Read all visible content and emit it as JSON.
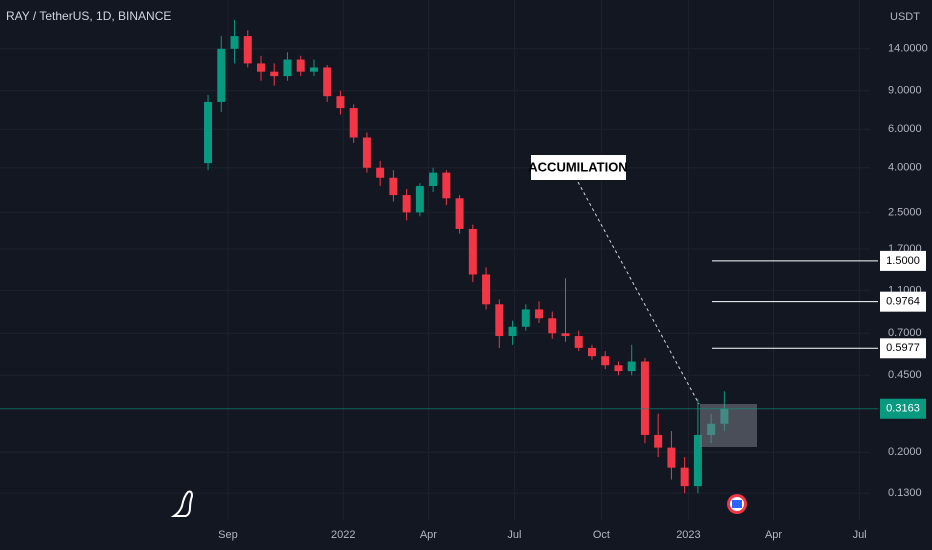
{
  "chart_data": {
    "type": "candlestick",
    "title": "RAY / TetherUS, 1D, BINANCE",
    "y_unit": "USDT",
    "x": [
      -21,
      -7,
      7,
      21,
      35,
      49,
      63,
      77,
      91,
      105,
      119,
      133,
      147,
      161,
      175,
      189,
      203,
      217,
      231,
      245,
      259,
      273,
      287,
      301,
      315,
      329,
      343,
      357,
      371,
      385,
      399,
      413,
      427,
      441,
      455,
      469,
      483,
      497,
      511,
      525
    ],
    "open": [
      4.2,
      8,
      14,
      16,
      12,
      11,
      10.5,
      12.5,
      11,
      11.5,
      8.5,
      7.5,
      5.5,
      4,
      3.6,
      3,
      2.5,
      3.3,
      3.8,
      2.9,
      2.1,
      1.3,
      0.95,
      0.68,
      0.75,
      0.9,
      0.82,
      0.7,
      0.68,
      0.6,
      0.55,
      0.5,
      0.47,
      0.52,
      0.24,
      0.21,
      0.17,
      0.14,
      0.24,
      0.27
    ],
    "high": [
      8.6,
      16,
      19,
      17,
      13,
      12,
      13.5,
      13,
      12.5,
      11.8,
      9,
      7.8,
      5.8,
      4.3,
      3.9,
      3.2,
      3.4,
      4,
      3.9,
      3,
      2.2,
      1.4,
      1,
      0.8,
      0.95,
      0.98,
      0.88,
      1.25,
      0.72,
      0.62,
      0.58,
      0.52,
      0.62,
      0.54,
      0.3,
      0.25,
      0.19,
      0.35,
      0.3,
      0.38
    ],
    "low": [
      3.9,
      7.2,
      12,
      11.5,
      10,
      9.5,
      10,
      10.5,
      10.5,
      8,
      7,
      5.2,
      3.8,
      3.3,
      2.8,
      2.3,
      2.4,
      3.1,
      2.7,
      2,
      1.2,
      0.9,
      0.6,
      0.62,
      0.72,
      0.78,
      0.66,
      0.64,
      0.58,
      0.53,
      0.48,
      0.45,
      0.45,
      0.22,
      0.19,
      0.15,
      0.13,
      0.13,
      0.22,
      0.25
    ],
    "close": [
      8,
      14,
      16,
      12,
      11,
      10.5,
      12.5,
      11,
      11.5,
      8.5,
      7.5,
      5.5,
      4,
      3.6,
      3,
      2.5,
      3.3,
      3.8,
      2.9,
      2.1,
      1.3,
      0.95,
      0.68,
      0.75,
      0.9,
      0.82,
      0.7,
      0.68,
      0.6,
      0.55,
      0.5,
      0.47,
      0.52,
      0.24,
      0.21,
      0.17,
      0.14,
      0.24,
      0.27,
      0.3163
    ],
    "up_color": "#089981",
    "down_color": "#f23645",
    "xlim": [
      -241,
      679
    ],
    "xticks": [
      {
        "value": 0,
        "label": "Sep"
      },
      {
        "value": 122,
        "label": "2022"
      },
      {
        "value": 212,
        "label": "Apr"
      },
      {
        "value": 303,
        "label": "Jul"
      },
      {
        "value": 395,
        "label": "Oct"
      },
      {
        "value": 487,
        "label": "2023"
      },
      {
        "value": 577,
        "label": "Apr"
      },
      {
        "value": 668,
        "label": "Jul"
      }
    ],
    "ylim": [
      0.098,
      23.4
    ],
    "log_y": true,
    "grid": true,
    "yticks": [
      {
        "value": 14,
        "label": "14.0000"
      },
      {
        "value": 9,
        "label": "9.0000"
      },
      {
        "value": 6,
        "label": "6.0000"
      },
      {
        "value": 4,
        "label": "4.0000"
      },
      {
        "value": 2.5,
        "label": "2.5000"
      },
      {
        "value": 1.7,
        "label": "1.7000"
      },
      {
        "value": 1.1,
        "label": "1.1000"
      },
      {
        "value": 0.7,
        "label": "0.7000"
      },
      {
        "value": 0.45,
        "label": "0.4500"
      },
      {
        "value": 0.2,
        "label": "0.2000"
      },
      {
        "value": 0.13,
        "label": "0.1300"
      }
    ],
    "price_lines": [
      {
        "value": 1.5,
        "label": "1.5000"
      },
      {
        "value": 0.9764,
        "label": "0.9764"
      },
      {
        "value": 0.5977,
        "label": "0.5977"
      }
    ],
    "last_price": {
      "value": 0.3163,
      "label": "0.3163"
    },
    "annotation": "ACCUMILATION"
  }
}
